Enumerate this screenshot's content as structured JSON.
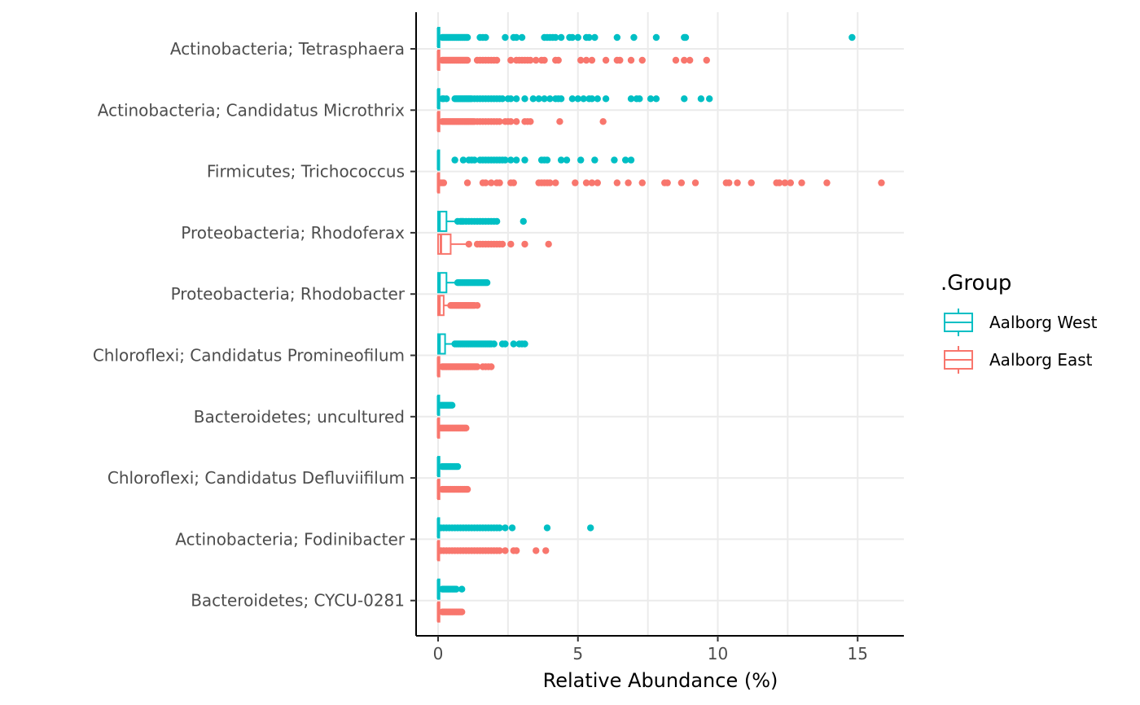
{
  "chart_data": {
    "type": "boxplot",
    "xlabel": "Relative Abundance (%)",
    "xlim": [
      -0.8,
      16.6
    ],
    "xticks": [
      0,
      5,
      10,
      15
    ],
    "grid": true,
    "legend": {
      "title": ".Group",
      "placement": "right",
      "entries": [
        {
          "name": "Aalborg West",
          "color": "#00BFC4"
        },
        {
          "name": "Aalborg East",
          "color": "#F8766D"
        }
      ]
    },
    "categories": [
      "Actinobacteria; Tetrasphaera",
      "Actinobacteria; Candidatus Microthrix",
      "Firmicutes; Trichococcus",
      "Proteobacteria; Rhodoferax",
      "Proteobacteria; Rhodobacter",
      "Chloroflexi; Candidatus Promineofilum",
      "Bacteroidetes; uncultured",
      "Chloroflexi; Candidatus Defluviifilum",
      "Actinobacteria; Fodinibacter",
      "Bacteroidetes; CYCU-0281"
    ],
    "series": [
      {
        "name": "Aalborg West",
        "color": "#00BFC4",
        "boxes": [
          {
            "q1": 0,
            "median": 0,
            "q3": 0.05,
            "whisker_low": 0,
            "whisker_high": 0.1,
            "outliers": [
              0.15,
              0.2,
              0.25,
              0.3,
              0.35,
              0.4,
              0.45,
              0.5,
              0.55,
              0.6,
              0.65,
              0.7,
              0.75,
              0.8,
              0.85,
              0.9,
              0.95,
              1.0,
              1.05,
              1.5,
              1.6,
              1.7,
              2.4,
              2.7,
              2.8,
              3.0,
              3.8,
              3.9,
              4.0,
              4.1,
              4.2,
              4.4,
              4.7,
              4.8,
              5.0,
              5.3,
              5.4,
              5.6,
              6.4,
              7.0,
              7.8,
              8.8,
              8.85,
              14.8
            ]
          },
          {
            "q1": 0,
            "median": 0,
            "q3": 0.05,
            "whisker_low": 0,
            "whisker_high": 0.1,
            "outliers": [
              0.15,
              0.2,
              0.3,
              0.6,
              0.65,
              0.7,
              0.75,
              0.8,
              0.85,
              0.9,
              0.95,
              1.0,
              1.05,
              1.1,
              1.15,
              1.2,
              1.3,
              1.4,
              1.5,
              1.6,
              1.7,
              1.8,
              1.9,
              2.0,
              2.1,
              2.2,
              2.3,
              2.5,
              2.6,
              2.8,
              3.1,
              3.4,
              3.6,
              3.8,
              4.0,
              4.2,
              4.3,
              4.4,
              4.8,
              5.0,
              5.2,
              5.4,
              5.5,
              5.7,
              6.0,
              6.9,
              7.1,
              7.2,
              7.6,
              7.8,
              8.8,
              9.4,
              9.7
            ]
          },
          {
            "q1": 0,
            "median": 0,
            "q3": 0.02,
            "whisker_low": 0,
            "whisker_high": 0.05,
            "outliers": [
              0.6,
              0.9,
              1.1,
              1.2,
              1.3,
              1.5,
              1.6,
              1.7,
              1.8,
              1.9,
              2.0,
              2.1,
              2.2,
              2.3,
              2.4,
              2.6,
              2.8,
              3.1,
              3.7,
              3.8,
              3.9,
              4.4,
              4.6,
              5.1,
              5.6,
              6.3,
              6.7,
              6.9
            ]
          },
          {
            "q1": 0,
            "median": 0.05,
            "q3": 0.3,
            "whisker_low": 0,
            "whisker_high": 0.65,
            "outliers": [
              0.7,
              0.8,
              0.85,
              0.9,
              1.0,
              1.1,
              1.2,
              1.3,
              1.4,
              1.5,
              1.6,
              1.7,
              1.8,
              1.9,
              2.0,
              2.1,
              3.05
            ]
          },
          {
            "q1": 0,
            "median": 0.05,
            "q3": 0.3,
            "whisker_low": 0,
            "whisker_high": 0.65,
            "outliers": [
              0.7,
              0.75,
              0.8,
              0.85,
              0.9,
              0.95,
              1.0,
              1.05,
              1.1,
              1.15,
              1.2,
              1.25,
              1.3,
              1.35,
              1.4,
              1.45,
              1.5,
              1.55,
              1.6,
              1.65,
              1.7,
              1.75
            ]
          },
          {
            "q1": 0,
            "median": 0.05,
            "q3": 0.25,
            "whisker_low": 0,
            "whisker_high": 0.55,
            "outliers": [
              0.6,
              0.65,
              0.7,
              0.75,
              0.8,
              0.85,
              0.9,
              0.95,
              1.0,
              1.05,
              1.1,
              1.15,
              1.2,
              1.25,
              1.3,
              1.35,
              1.4,
              1.45,
              1.5,
              1.55,
              1.6,
              1.65,
              1.7,
              1.75,
              1.8,
              1.85,
              1.9,
              2.0,
              2.3,
              2.4,
              2.7,
              2.9,
              3.0,
              3.1
            ]
          },
          {
            "q1": 0,
            "median": 0,
            "q3": 0.02,
            "whisker_low": 0,
            "whisker_high": 0.05,
            "outliers": [
              0.1,
              0.15,
              0.2,
              0.25,
              0.3,
              0.35,
              0.4,
              0.45,
              0.5
            ]
          },
          {
            "q1": 0,
            "median": 0,
            "q3": 0.05,
            "whisker_low": 0,
            "whisker_high": 0.1,
            "outliers": [
              0.15,
              0.2,
              0.25,
              0.3,
              0.35,
              0.4,
              0.45,
              0.5,
              0.55,
              0.6,
              0.65,
              0.7
            ]
          },
          {
            "q1": 0,
            "median": 0,
            "q3": 0.02,
            "whisker_low": 0,
            "whisker_high": 0.05,
            "outliers": [
              0.1,
              0.2,
              0.3,
              0.4,
              0.5,
              0.6,
              0.7,
              0.8,
              0.9,
              1.0,
              1.1,
              1.2,
              1.3,
              1.4,
              1.5,
              1.6,
              1.7,
              1.8,
              1.9,
              2.0,
              2.1,
              2.2,
              2.4,
              2.65,
              3.9,
              5.45
            ]
          },
          {
            "q1": 0,
            "median": 0,
            "q3": 0.05,
            "whisker_low": 0,
            "whisker_high": 0.1,
            "outliers": [
              0.15,
              0.2,
              0.25,
              0.3,
              0.35,
              0.4,
              0.45,
              0.5,
              0.55,
              0.6,
              0.65,
              0.85
            ]
          }
        ]
      },
      {
        "name": "Aalborg East",
        "color": "#F8766D",
        "boxes": [
          {
            "q1": 0,
            "median": 0,
            "q3": 0.05,
            "whisker_low": 0,
            "whisker_high": 0.1,
            "outliers": [
              0.15,
              0.2,
              0.25,
              0.3,
              0.35,
              0.4,
              0.45,
              0.5,
              0.55,
              0.6,
              0.65,
              0.7,
              0.75,
              0.8,
              0.85,
              0.9,
              0.95,
              1.0,
              1.05,
              1.4,
              1.5,
              1.6,
              1.7,
              1.8,
              1.9,
              2.0,
              2.1,
              2.6,
              2.8,
              2.9,
              3.0,
              3.1,
              3.2,
              3.3,
              3.5,
              3.7,
              3.8,
              4.2,
              4.3,
              5.1,
              5.3,
              5.5,
              6.0,
              6.4,
              6.5,
              6.9,
              7.3,
              8.5,
              8.8,
              9.0,
              9.6
            ]
          },
          {
            "q1": 0,
            "median": 0,
            "q3": 0.05,
            "whisker_low": 0,
            "whisker_high": 0.1,
            "outliers": [
              0.15,
              0.2,
              0.25,
              0.3,
              0.35,
              0.4,
              0.45,
              0.5,
              0.55,
              0.6,
              0.65,
              0.7,
              0.75,
              0.8,
              0.85,
              0.9,
              0.95,
              1.0,
              1.05,
              1.1,
              1.15,
              1.2,
              1.25,
              1.3,
              1.4,
              1.5,
              1.6,
              1.7,
              1.8,
              1.9,
              2.0,
              2.1,
              2.2,
              2.4,
              2.5,
              2.6,
              2.8,
              3.1,
              3.2,
              3.3,
              4.35,
              5.9
            ]
          },
          {
            "q1": 0,
            "median": 0,
            "q3": 0.02,
            "whisker_low": 0,
            "whisker_high": 0.05,
            "outliers": [
              0.1,
              0.15,
              0.2,
              1.05,
              1.6,
              1.7,
              1.9,
              2.1,
              2.2,
              2.6,
              2.7,
              3.6,
              3.7,
              3.8,
              3.9,
              4.0,
              4.2,
              4.9,
              5.3,
              5.5,
              5.7,
              6.4,
              6.8,
              7.3,
              8.1,
              8.2,
              8.7,
              9.2,
              10.3,
              10.4,
              10.7,
              11.2,
              12.1,
              12.2,
              12.4,
              12.6,
              13.0,
              13.9,
              15.85
            ]
          },
          {
            "q1": 0,
            "median": 0.1,
            "q3": 0.45,
            "whisker_low": 0,
            "whisker_high": 1.0,
            "outliers": [
              1.1,
              1.4,
              1.5,
              1.6,
              1.7,
              1.8,
              1.9,
              2.0,
              2.1,
              2.2,
              2.3,
              2.6,
              3.1,
              3.95
            ]
          },
          {
            "q1": 0,
            "median": 0.05,
            "q3": 0.2,
            "whisker_low": 0,
            "whisker_high": 0.4,
            "outliers": [
              0.45,
              0.5,
              0.55,
              0.6,
              0.65,
              0.7,
              0.75,
              0.8,
              0.85,
              0.9,
              0.95,
              1.0,
              1.05,
              1.1,
              1.15,
              1.2,
              1.25,
              1.3,
              1.4
            ]
          },
          {
            "q1": 0,
            "median": 0,
            "q3": 0.05,
            "whisker_low": 0,
            "whisker_high": 0.1,
            "outliers": [
              0.15,
              0.2,
              0.25,
              0.3,
              0.35,
              0.4,
              0.45,
              0.5,
              0.55,
              0.6,
              0.65,
              0.7,
              0.75,
              0.8,
              0.85,
              0.9,
              0.95,
              1.0,
              1.05,
              1.1,
              1.15,
              1.2,
              1.25,
              1.3,
              1.35,
              1.4,
              1.6,
              1.7,
              1.8,
              1.9
            ]
          },
          {
            "q1": 0,
            "median": 0,
            "q3": 0.02,
            "whisker_low": 0,
            "whisker_high": 0.05,
            "outliers": [
              0.1,
              0.15,
              0.2,
              0.25,
              0.3,
              0.35,
              0.4,
              0.45,
              0.5,
              0.55,
              0.6,
              0.65,
              0.7,
              0.75,
              0.8,
              0.85,
              0.9,
              0.95,
              1.0
            ]
          },
          {
            "q1": 0,
            "median": 0,
            "q3": 0.05,
            "whisker_low": 0,
            "whisker_high": 0.1,
            "outliers": [
              0.15,
              0.2,
              0.25,
              0.3,
              0.35,
              0.4,
              0.45,
              0.5,
              0.55,
              0.6,
              0.65,
              0.7,
              0.75,
              0.8,
              0.85,
              0.9,
              0.95,
              1.0,
              1.05
            ]
          },
          {
            "q1": 0,
            "median": 0,
            "q3": 0.02,
            "whisker_low": 0,
            "whisker_high": 0.05,
            "outliers": [
              0.1,
              0.2,
              0.3,
              0.4,
              0.5,
              0.6,
              0.7,
              0.8,
              0.9,
              1.0,
              1.1,
              1.2,
              1.3,
              1.4,
              1.5,
              1.6,
              1.7,
              1.8,
              1.9,
              2.0,
              2.1,
              2.2,
              2.4,
              2.7,
              2.8,
              3.5,
              3.85
            ]
          },
          {
            "q1": 0,
            "median": 0,
            "q3": 0.05,
            "whisker_low": 0,
            "whisker_high": 0.1,
            "outliers": [
              0.15,
              0.2,
              0.25,
              0.3,
              0.35,
              0.4,
              0.45,
              0.5,
              0.55,
              0.6,
              0.65,
              0.7,
              0.75,
              0.8,
              0.85
            ]
          }
        ]
      }
    ]
  }
}
